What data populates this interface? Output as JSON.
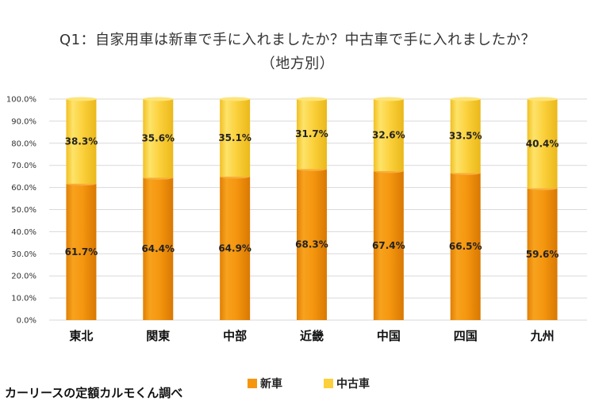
{
  "chart_data": {
    "type": "bar",
    "stacked": true,
    "title": "Q1：自家用車は新車で手に入れましたか？中古車で手に入れましたか？",
    "subtitle": "（地方別）",
    "categories": [
      "東北",
      "関東",
      "中部",
      "近畿",
      "中国",
      "四国",
      "九州"
    ],
    "series": [
      {
        "name": "新車",
        "values": [
          61.7,
          64.4,
          64.9,
          68.3,
          67.4,
          66.5,
          59.6
        ],
        "color": "#f5960f"
      },
      {
        "name": "中古車",
        "values": [
          38.3,
          35.6,
          35.1,
          31.7,
          32.6,
          33.5,
          40.4
        ],
        "color": "#fbd03c"
      }
    ],
    "data_labels": {
      "新車": [
        "61.7%",
        "64.4%",
        "64.9%",
        "68.3%",
        "67.4%",
        "66.5%",
        "59.6%"
      ],
      "中古車": [
        "38.3%",
        "35.6%",
        "35.1%",
        "31.7%",
        "32.6%",
        "33.5%",
        "40.4%"
      ]
    },
    "ylim": [
      0,
      100
    ],
    "yticks": [
      "0.0%",
      "10.0%",
      "20.0%",
      "30.0%",
      "40.0%",
      "50.0%",
      "60.0%",
      "70.0%",
      "80.0%",
      "90.0%",
      "100.0%"
    ],
    "grid": true,
    "legend": "bottom",
    "xlabel": "",
    "ylabel": ""
  },
  "source_note": "カーリースの定額カルモくん調べ"
}
